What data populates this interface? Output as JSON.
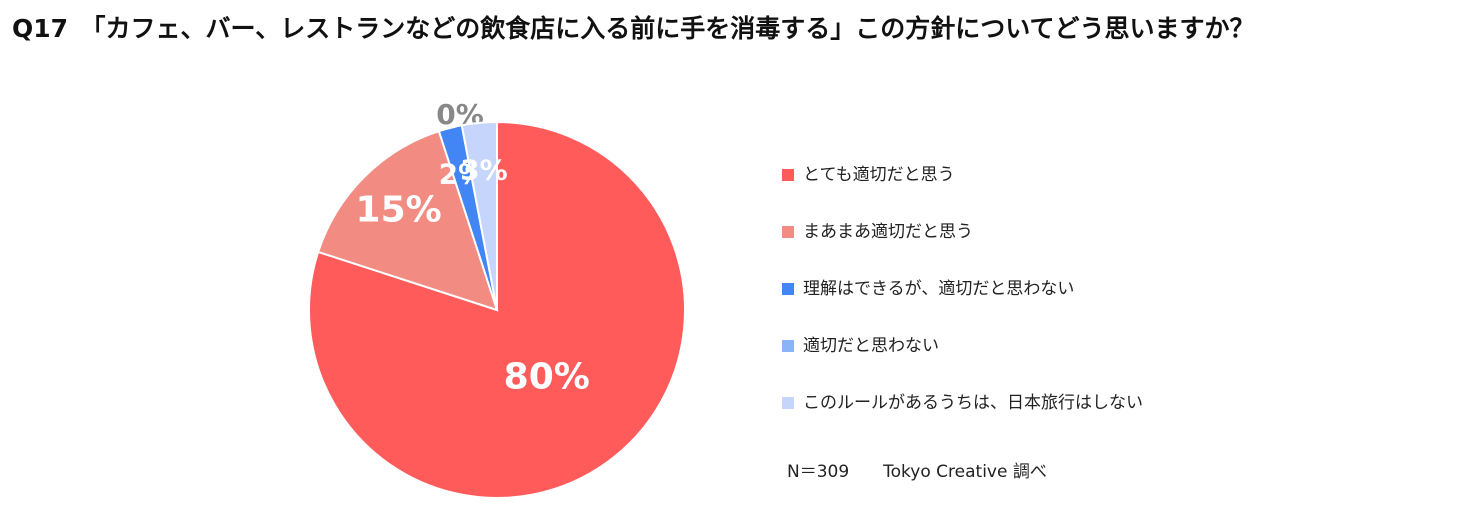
{
  "chart_data": {
    "type": "pie",
    "title": "Q17　「カフェ、バー、レストランなどの飲食店に入る前に手を消毒する」この方針についてどう思いますか？",
    "categories": [
      "とても適切だと思う",
      "まあまあ適切だと思う",
      "理解はできるが、適切だと思わない",
      "適切だと思わない",
      "このルールがあるうちは、日本旅行はしない"
    ],
    "values": [
      80,
      15,
      2,
      0,
      3
    ],
    "value_labels": [
      "80%",
      "15%",
      "2%",
      "0%",
      "3%"
    ],
    "colors": [
      "#ff5b5b",
      "#f28b82",
      "#4285f4",
      "#8ab4f8",
      "#c6d5fb"
    ],
    "note": "N＝309　　Tokyo Creative 調べ"
  }
}
